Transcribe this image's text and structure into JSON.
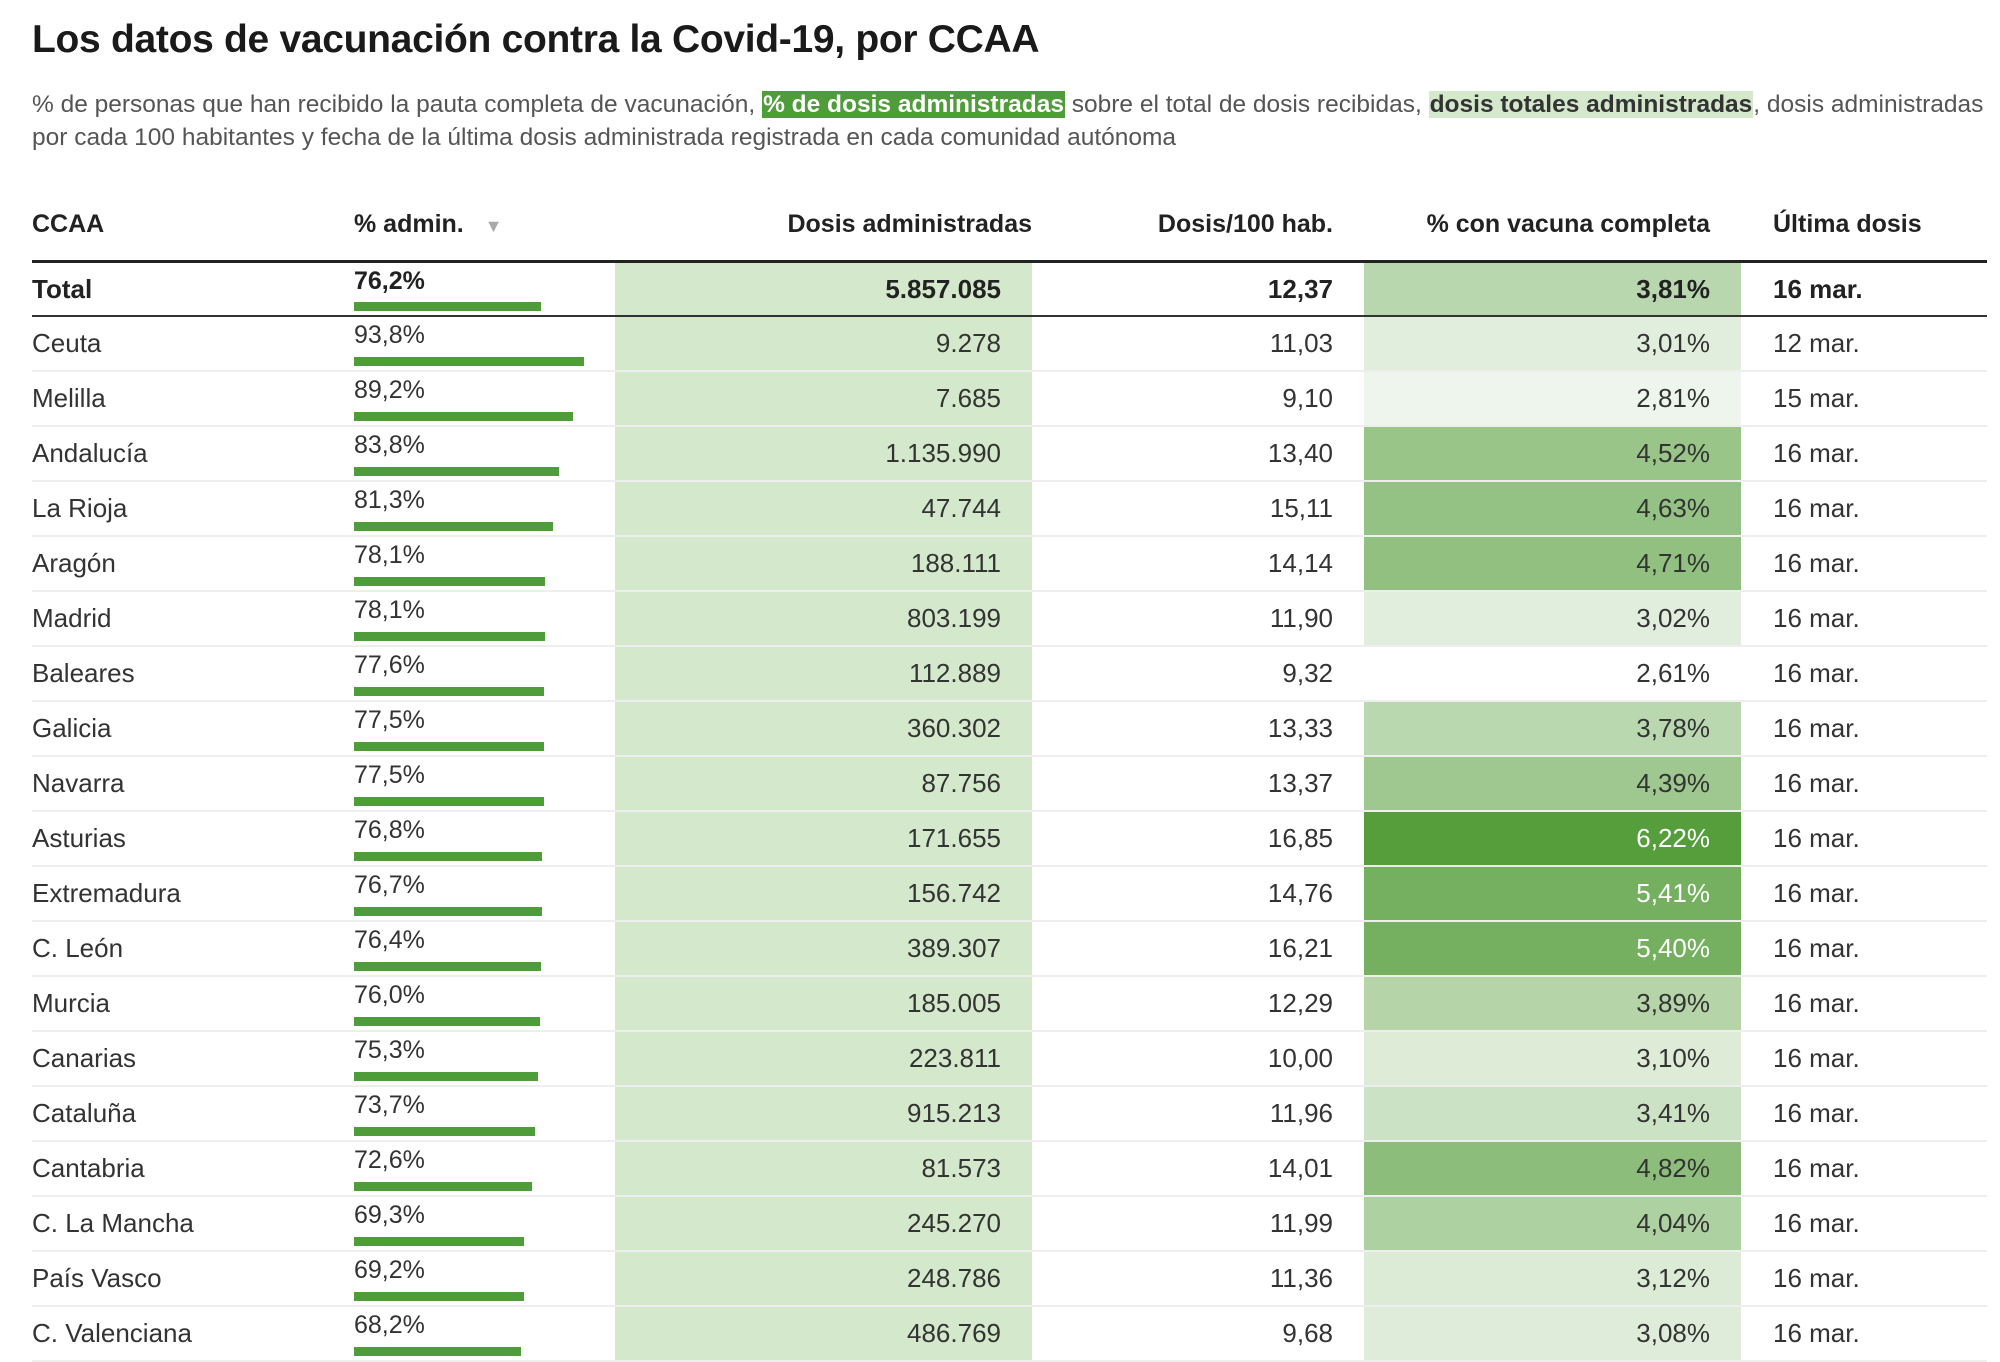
{
  "title": "Los datos de vacunación contra la Covid-19, por CCAA",
  "subtitle": {
    "part1": "% de personas que han recibido la pauta completa de vacunación, ",
    "highlight1": "% de dosis administradas",
    "part2": " sobre el total de dosis recibidas, ",
    "highlight2": "dosis totales administradas",
    "part3": ", dosis administradas por cada 100 habitantes y fecha de la última dosis administrada registrada en cada comunidad autónoma"
  },
  "colors": {
    "bar": "#4e9d3a",
    "dosis_bg": "#d4e8cc",
    "scale_low": "#ffffff",
    "scale_high": "#559e3b"
  },
  "columns": [
    "CCAA",
    "% admin.",
    "Dosis administradas",
    "Dosis/100 hab.",
    "% con vacuna completa",
    "Última dosis"
  ],
  "sort_icon": "triangle-down-icon",
  "sort_glyph": "▼",
  "total": {
    "name": "Total",
    "pct": "76,2%",
    "pct_value": 76.2,
    "dosis": "5.857.085",
    "per100": "12,37",
    "vac": "3,81%",
    "vac_value": 3.81,
    "fecha": "16 mar."
  },
  "rows": [
    {
      "name": "Ceuta",
      "pct": "93,8%",
      "pct_value": 93.8,
      "dosis": "9.278",
      "per100": "11,03",
      "vac": "3,01%",
      "vac_value": 3.01,
      "fecha": "12 mar."
    },
    {
      "name": "Melilla",
      "pct": "89,2%",
      "pct_value": 89.2,
      "dosis": "7.685",
      "per100": "9,10",
      "vac": "2,81%",
      "vac_value": 2.81,
      "fecha": "15 mar."
    },
    {
      "name": "Andalucía",
      "pct": "83,8%",
      "pct_value": 83.8,
      "dosis": "1.135.990",
      "per100": "13,40",
      "vac": "4,52%",
      "vac_value": 4.52,
      "fecha": "16 mar."
    },
    {
      "name": "La Rioja",
      "pct": "81,3%",
      "pct_value": 81.3,
      "dosis": "47.744",
      "per100": "15,11",
      "vac": "4,63%",
      "vac_value": 4.63,
      "fecha": "16 mar."
    },
    {
      "name": "Aragón",
      "pct": "78,1%",
      "pct_value": 78.1,
      "dosis": "188.111",
      "per100": "14,14",
      "vac": "4,71%",
      "vac_value": 4.71,
      "fecha": "16 mar."
    },
    {
      "name": "Madrid",
      "pct": "78,1%",
      "pct_value": 78.1,
      "dosis": "803.199",
      "per100": "11,90",
      "vac": "3,02%",
      "vac_value": 3.02,
      "fecha": "16 mar."
    },
    {
      "name": "Baleares",
      "pct": "77,6%",
      "pct_value": 77.6,
      "dosis": "112.889",
      "per100": "9,32",
      "vac": "2,61%",
      "vac_value": 2.61,
      "fecha": "16 mar."
    },
    {
      "name": "Galicia",
      "pct": "77,5%",
      "pct_value": 77.5,
      "dosis": "360.302",
      "per100": "13,33",
      "vac": "3,78%",
      "vac_value": 3.78,
      "fecha": "16 mar."
    },
    {
      "name": "Navarra",
      "pct": "77,5%",
      "pct_value": 77.5,
      "dosis": "87.756",
      "per100": "13,37",
      "vac": "4,39%",
      "vac_value": 4.39,
      "fecha": "16 mar."
    },
    {
      "name": "Asturias",
      "pct": "76,8%",
      "pct_value": 76.8,
      "dosis": "171.655",
      "per100": "16,85",
      "vac": "6,22%",
      "vac_value": 6.22,
      "fecha": "16 mar."
    },
    {
      "name": "Extremadura",
      "pct": "76,7%",
      "pct_value": 76.7,
      "dosis": "156.742",
      "per100": "14,76",
      "vac": "5,41%",
      "vac_value": 5.41,
      "fecha": "16 mar."
    },
    {
      "name": "C. León",
      "pct": "76,4%",
      "pct_value": 76.4,
      "dosis": "389.307",
      "per100": "16,21",
      "vac": "5,40%",
      "vac_value": 5.4,
      "fecha": "16 mar."
    },
    {
      "name": "Murcia",
      "pct": "76,0%",
      "pct_value": 76.0,
      "dosis": "185.005",
      "per100": "12,29",
      "vac": "3,89%",
      "vac_value": 3.89,
      "fecha": "16 mar."
    },
    {
      "name": "Canarias",
      "pct": "75,3%",
      "pct_value": 75.3,
      "dosis": "223.811",
      "per100": "10,00",
      "vac": "3,10%",
      "vac_value": 3.1,
      "fecha": "16 mar."
    },
    {
      "name": "Cataluña",
      "pct": "73,7%",
      "pct_value": 73.7,
      "dosis": "915.213",
      "per100": "11,96",
      "vac": "3,41%",
      "vac_value": 3.41,
      "fecha": "16 mar."
    },
    {
      "name": "Cantabria",
      "pct": "72,6%",
      "pct_value": 72.6,
      "dosis": "81.573",
      "per100": "14,01",
      "vac": "4,82%",
      "vac_value": 4.82,
      "fecha": "16 mar."
    },
    {
      "name": "C. La Mancha",
      "pct": "69,3%",
      "pct_value": 69.3,
      "dosis": "245.270",
      "per100": "11,99",
      "vac": "4,04%",
      "vac_value": 4.04,
      "fecha": "16 mar."
    },
    {
      "name": "País Vasco",
      "pct": "69,2%",
      "pct_value": 69.2,
      "dosis": "248.786",
      "per100": "11,36",
      "vac": "3,12%",
      "vac_value": 3.12,
      "fecha": "16 mar."
    },
    {
      "name": "C. Valenciana",
      "pct": "68,2%",
      "pct_value": 68.2,
      "dosis": "486.769",
      "per100": "9,68",
      "vac": "3,08%",
      "vac_value": 3.08,
      "fecha": "16 mar."
    }
  ]
}
